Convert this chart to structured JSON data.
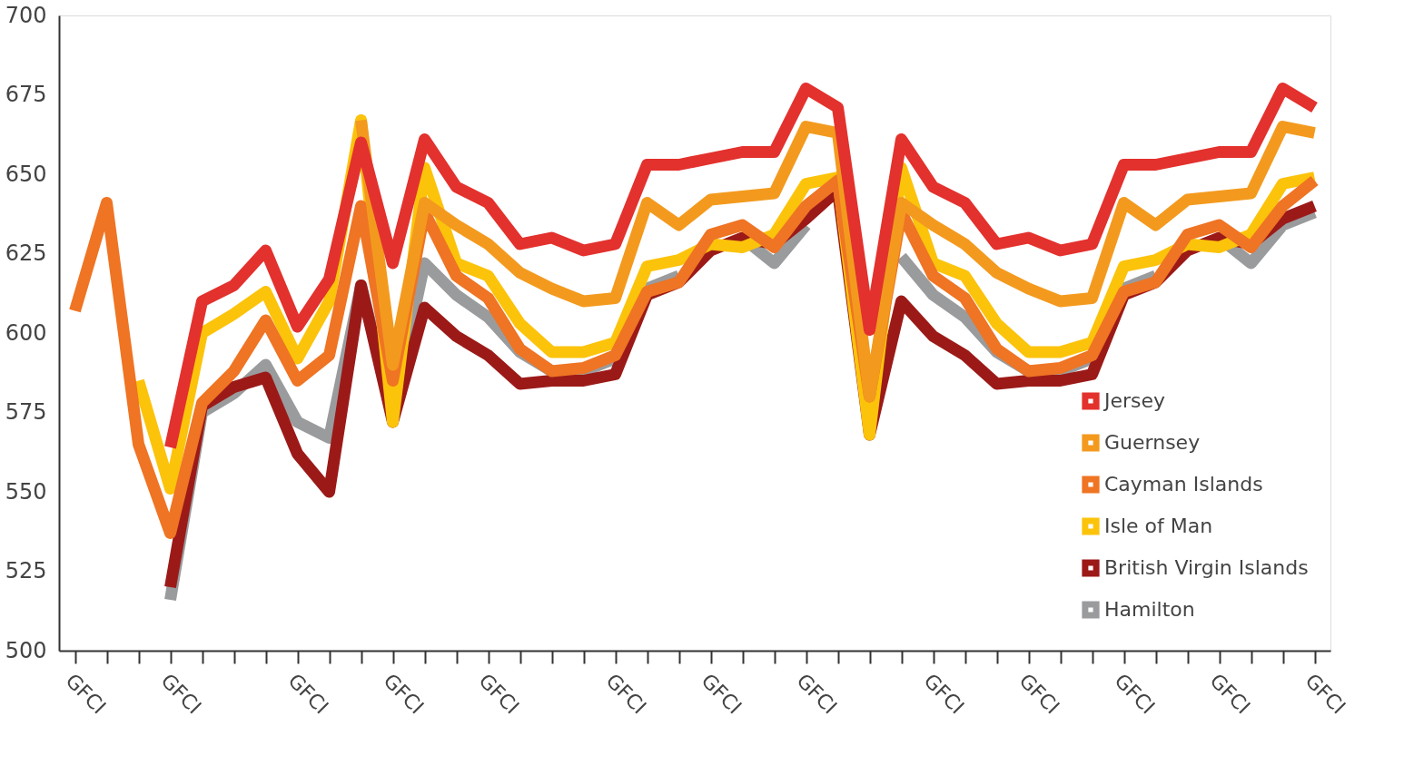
{
  "chart_data": {
    "type": "line",
    "categories": [
      "GFCI",
      null,
      null,
      "GFCI",
      null,
      null,
      null,
      "GFCI",
      null,
      null,
      "GFCI",
      null,
      null,
      "GFCI",
      null,
      null,
      null,
      "GFCI",
      null,
      null,
      "GFCI",
      null,
      null,
      "GFCI",
      null,
      null,
      null,
      "GFCI",
      null,
      null,
      "GFCI",
      null,
      null,
      "GFCI",
      null,
      null,
      "GFCI",
      null,
      null,
      "GFCI"
    ],
    "ylim": [
      500,
      700
    ],
    "yticks": [
      500,
      525,
      550,
      575,
      600,
      625,
      650,
      675,
      700
    ],
    "grid": false,
    "legend": "bottom right",
    "line_style": "solid",
    "series": [
      {
        "name": "Jersey",
        "color": "#e3312d",
        "values": [
          null,
          null,
          null,
          564,
          610,
          615,
          626,
          602,
          617,
          660,
          622,
          661,
          646,
          641,
          628,
          630,
          626,
          628,
          653,
          653,
          655,
          657,
          657,
          677,
          671,
          601,
          661,
          646,
          641,
          628,
          630,
          626,
          628,
          653,
          653,
          655,
          657,
          657,
          677,
          671
        ]
      },
      {
        "name": "Guernsey",
        "color": "#f39a1e",
        "values": [
          null,
          null,
          null,
          null,
          null,
          null,
          null,
          null,
          null,
          667,
          590,
          641,
          634,
          628,
          619,
          614,
          610,
          611,
          641,
          634,
          642,
          643,
          644,
          665,
          663,
          580,
          641,
          634,
          628,
          619,
          614,
          610,
          611,
          641,
          634,
          642,
          643,
          644,
          665,
          663
        ]
      },
      {
        "name": "Cayman Islands",
        "color": "#ef7423",
        "values": [
          607,
          641,
          565,
          537,
          578,
          588,
          604,
          585,
          593,
          640,
          585,
          638,
          618,
          611,
          595,
          588,
          589,
          593,
          613,
          616,
          631,
          634,
          627,
          640,
          648,
          580,
          638,
          618,
          611,
          595,
          588,
          589,
          593,
          613,
          616,
          631,
          634,
          627,
          640,
          648
        ]
      },
      {
        "name": "Isle of Man",
        "color": "#fcc30b",
        "values": [
          null,
          null,
          585,
          551,
          600,
          606,
          613,
          592,
          610,
          667,
          572,
          652,
          622,
          618,
          603,
          594,
          594,
          597,
          621,
          623,
          628,
          627,
          631,
          647,
          649,
          568,
          652,
          622,
          618,
          603,
          594,
          594,
          597,
          621,
          623,
          628,
          627,
          631,
          647,
          649
        ]
      },
      {
        "name": "British Virgin Islands",
        "color": "#9b1a18",
        "values": [
          null,
          null,
          null,
          520,
          577,
          583,
          586,
          562,
          550,
          615,
          572,
          608,
          599,
          593,
          584,
          585,
          585,
          587,
          612,
          616,
          626,
          630,
          628,
          636,
          645,
          568,
          610,
          599,
          593,
          584,
          585,
          585,
          587,
          612,
          616,
          626,
          630,
          628,
          636,
          640
        ]
      },
      {
        "name": "Hamilton",
        "color": "#9a9b9d",
        "values": [
          null,
          null,
          null,
          516,
          575,
          581,
          590,
          572,
          567,
          615,
          575,
          622,
          612,
          605,
          594,
          588,
          588,
          592,
          614,
          618,
          null,
          630,
          622,
          634,
          null,
          null,
          624,
          612,
          605,
          594,
          588,
          588,
          592,
          614,
          618,
          null,
          630,
          622,
          634,
          638
        ]
      }
    ]
  }
}
